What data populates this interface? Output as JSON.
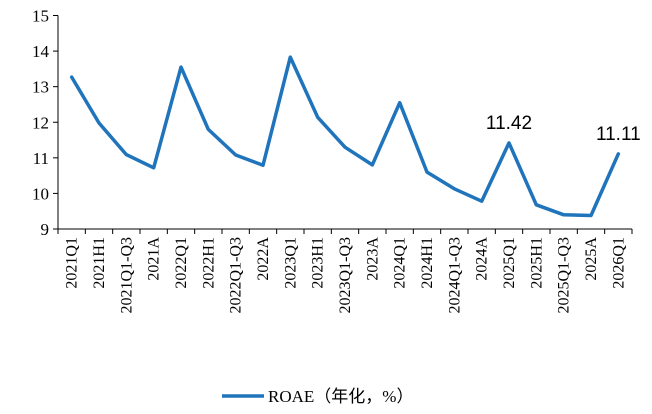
{
  "chart_data": {
    "type": "line",
    "categories": [
      "2021Q1",
      "2021H1",
      "2021Q1-Q3",
      "2021A",
      "2022Q1",
      "2022H1",
      "2022Q1-Q3",
      "2022A",
      "2023Q1",
      "2023H1",
      "2023Q1-Q3",
      "2023A",
      "2024Q1",
      "2024H1",
      "2024Q1-Q3",
      "2024A",
      "2025Q1",
      "2025H1",
      "2025Q1-Q3",
      "2025A",
      "2026Q1"
    ],
    "series": [
      {
        "name": "ROAE（年化，%）",
        "values": [
          13.27,
          11.98,
          11.09,
          10.72,
          13.55,
          11.8,
          11.08,
          10.79,
          13.83,
          12.14,
          11.3,
          10.8,
          12.55,
          10.6,
          10.13,
          9.78,
          11.42,
          9.68,
          9.4,
          9.38,
          11.11
        ],
        "color": "#1f74bb"
      }
    ],
    "data_labels": [
      {
        "index": 16,
        "text": "11.42"
      },
      {
        "index": 20,
        "text": "11.11"
      }
    ],
    "ylim": [
      9,
      15
    ],
    "yticks": [
      9,
      10,
      11,
      12,
      13,
      14,
      15
    ],
    "grid": false,
    "legend": "bottom-center",
    "title": "",
    "xlabel": "",
    "ylabel": ""
  }
}
